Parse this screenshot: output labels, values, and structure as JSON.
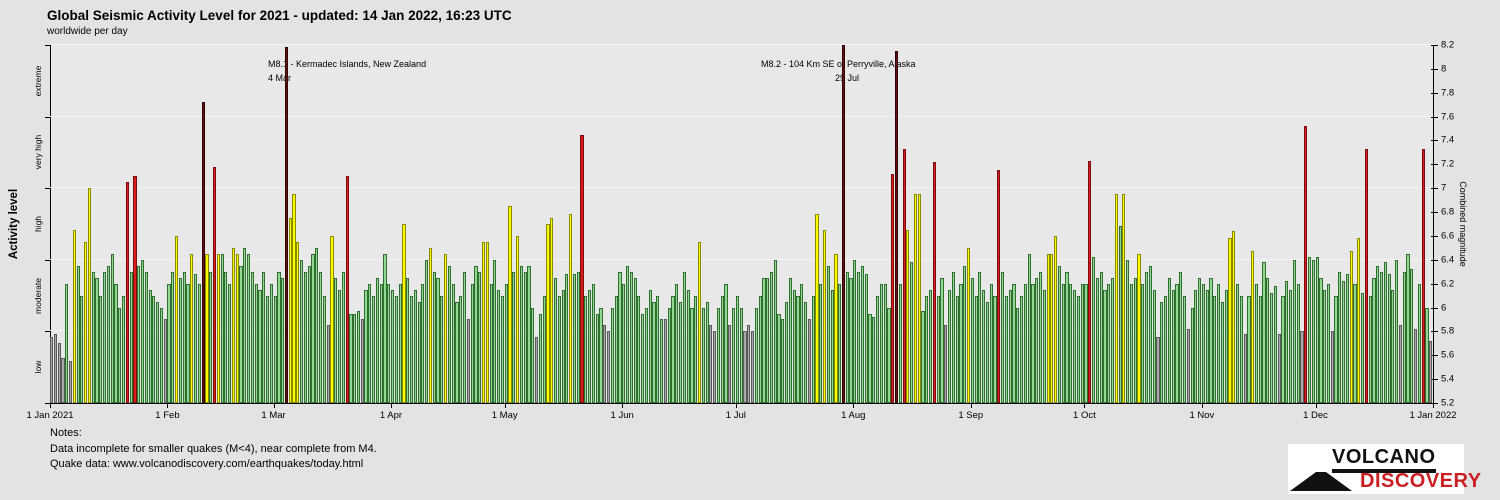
{
  "header": {
    "title": "Global Seismic Activity Level for 2021 - updated: 14 Jan 2022, 16:23 UTC",
    "subtitle": "worldwide per day"
  },
  "chart_data": {
    "type": "bar",
    "title": "Global Seismic Activity Level for 2021",
    "subtitle": "worldwide per day",
    "start_date": "2021-01-01",
    "ylabel_left": "Activity level",
    "ylabel_right": "Combined magnitude",
    "y_axis_left_categories": [
      "low",
      "moderate",
      "high",
      "very high",
      "extreme"
    ],
    "y_axis_right": {
      "min": 5.2,
      "max": 8.2,
      "tick_step": 0.2
    },
    "grid": true,
    "legend": "none",
    "x_tick_labels": [
      "1 Jan 2021",
      "1 Feb",
      "1 Mar",
      "1 Apr",
      "1 May",
      "1 Jun",
      "1 Jul",
      "1 Aug",
      "1 Sep",
      "1 Oct",
      "1 Nov",
      "1 Dec",
      "1 Jan 2022"
    ],
    "x_tick_day_offsets": [
      0,
      31,
      59,
      90,
      120,
      151,
      181,
      212,
      243,
      273,
      304,
      334,
      365
    ],
    "level_names": {
      "l": "low",
      "m": "moderate",
      "h": "high",
      "v": "very high",
      "e": "extreme"
    },
    "level_colors": {
      "l": "#a9a9a9",
      "m": "#92d892",
      "h": "#fbfb00",
      "v": "#da1c1c",
      "e": "#651010"
    },
    "level_border_colors": {
      "l": "#5a5a5a",
      "m": "#2e6e2e",
      "h": "#8a8a00",
      "v": "#7e0c0c",
      "e": "#2e0404"
    },
    "levels_by_month": [
      "llllmlhmmhhmmmmmmmmmvmvmmmmmmml",
      "mmhmmmhmmehmvhmmmhhmmmmmmmmm",
      "mmmehhhmmmmmmmlhmmmvmmmlmmmmmmm",
      "mmmhmmmmmmhmmmhmmmmmlmmmhhmmmm",
      "mhmhmmmmlmmhhmmmmhmmvmmmmmllmmm",
      "mmmmmmmmmmmlmmmmmmmmhmmllmmmlm",
      "mmlllmmmmmmmmmmmmmmlmhmhmmhmemm",
      "mmmmmmmmmmvemvhmhhmmmvmmlmmmmmh",
      "mmmmmmmvmmmmmmmmmmmmhhhmmmmmmm",
      "mvmmmmmmhmhmmmhmmmmlmmmmmmmlmmm",
      "mmmmmmmhhmmlmhmmmmmmlmmmmmlvmm",
      "mmmmlmmmmhmhmvmmmmmmmmlmmmlmvml"
    ],
    "values_by_month": [
      [
        5.75,
        5.78,
        5.7,
        5.58,
        6.2,
        5.55,
        6.65,
        6.35,
        6.1,
        6.55,
        7.0,
        6.3,
        6.25,
        6.1,
        6.3,
        6.35,
        6.45,
        6.2,
        6.0,
        6.1,
        7.05,
        6.3,
        7.1,
        6.35,
        6.4,
        6.3,
        6.15,
        6.1,
        6.05,
        6.0,
        5.9
      ],
      [
        6.2,
        6.3,
        6.6,
        6.25,
        6.3,
        6.2,
        6.45,
        6.28,
        6.2,
        7.72,
        6.45,
        6.3,
        7.18,
        6.45,
        6.45,
        6.3,
        6.2,
        6.5,
        6.45,
        6.35,
        6.5,
        6.45,
        6.3,
        6.2,
        6.15,
        6.3,
        6.1,
        6.2
      ],
      [
        6.1,
        6.3,
        6.25,
        8.18,
        6.75,
        6.95,
        6.55,
        6.4,
        6.3,
        6.35,
        6.45,
        6.5,
        6.3,
        6.1,
        5.85,
        6.6,
        6.25,
        6.15,
        6.3,
        7.1,
        5.95,
        5.95,
        5.97,
        5.9,
        6.15,
        6.2,
        6.1,
        6.25,
        6.2,
        6.45,
        6.2
      ],
      [
        6.15,
        6.1,
        6.2,
        6.7,
        6.25,
        6.1,
        6.15,
        6.05,
        6.2,
        6.4,
        6.5,
        6.3,
        6.25,
        6.1,
        6.45,
        6.35,
        6.2,
        6.05,
        6.1,
        6.3,
        5.9,
        6.2,
        6.35,
        6.3,
        6.55,
        6.55,
        6.2,
        6.4,
        6.15,
        6.1
      ],
      [
        6.2,
        6.85,
        6.3,
        6.6,
        6.35,
        6.3,
        6.35,
        6.0,
        5.75,
        5.95,
        6.1,
        6.7,
        6.75,
        6.25,
        6.1,
        6.15,
        6.28,
        6.78,
        6.28,
        6.3,
        7.45,
        6.1,
        6.15,
        6.2,
        5.95,
        6.0,
        5.85,
        5.8,
        6.0,
        6.1,
        6.3
      ],
      [
        6.2,
        6.35,
        6.3,
        6.25,
        6.1,
        5.95,
        6.0,
        6.15,
        6.05,
        6.1,
        5.9,
        5.9,
        6.0,
        6.1,
        6.2,
        6.05,
        6.3,
        6.15,
        6.0,
        6.1,
        6.55,
        6.0,
        6.05,
        5.85,
        5.8,
        6.0,
        6.1,
        6.2,
        5.85,
        6.0
      ],
      [
        6.1,
        6.0,
        5.8,
        5.85,
        5.8,
        6.0,
        6.1,
        6.25,
        6.25,
        6.3,
        6.4,
        5.95,
        5.9,
        6.05,
        6.25,
        6.15,
        6.1,
        6.2,
        6.05,
        5.9,
        6.1,
        6.78,
        6.2,
        6.65,
        6.35,
        6.15,
        6.45,
        6.2,
        8.2,
        6.3,
        6.25
      ],
      [
        6.4,
        6.3,
        6.35,
        6.28,
        5.95,
        5.92,
        6.1,
        6.2,
        6.2,
        6.0,
        7.12,
        8.15,
        6.2,
        7.33,
        6.65,
        6.38,
        6.95,
        6.95,
        5.97,
        6.1,
        6.15,
        7.22,
        6.1,
        6.25,
        5.85,
        6.15,
        6.3,
        6.1,
        6.2,
        6.35,
        6.5
      ],
      [
        6.25,
        6.1,
        6.3,
        6.15,
        6.05,
        6.2,
        6.1,
        7.15,
        6.3,
        6.1,
        6.15,
        6.2,
        6.0,
        6.1,
        6.2,
        6.45,
        6.2,
        6.25,
        6.3,
        6.15,
        6.45,
        6.45,
        6.6,
        6.35,
        6.2,
        6.3,
        6.2,
        6.15,
        6.1,
        6.2
      ],
      [
        6.2,
        7.23,
        6.42,
        6.25,
        6.3,
        6.15,
        6.2,
        6.25,
        6.95,
        6.68,
        6.95,
        6.4,
        6.2,
        6.25,
        6.45,
        6.2,
        6.3,
        6.35,
        6.15,
        5.75,
        6.05,
        6.1,
        6.25,
        6.15,
        6.2,
        6.3,
        6.1,
        5.82,
        6.0,
        6.15,
        6.25
      ],
      [
        6.2,
        6.15,
        6.25,
        6.1,
        6.2,
        6.05,
        6.15,
        6.58,
        6.64,
        6.2,
        6.1,
        5.78,
        6.1,
        6.47,
        6.2,
        6.1,
        6.38,
        6.25,
        6.12,
        6.18,
        5.78,
        6.1,
        6.22,
        6.15,
        6.4,
        6.2,
        5.8,
        7.52,
        6.42,
        6.4
      ],
      [
        6.42,
        6.25,
        6.15,
        6.2,
        5.8,
        6.1,
        6.3,
        6.22,
        6.28,
        6.47,
        6.2,
        6.58,
        6.12,
        7.33,
        6.1,
        6.25,
        6.35,
        6.3,
        6.38,
        6.28,
        6.15,
        6.4,
        5.85,
        6.3,
        6.45,
        6.32,
        5.82,
        6.2,
        7.33,
        6.0,
        5.72
      ]
    ],
    "annotations": [
      {
        "line1": "M8.1 - Kermadec Islands, New Zealand",
        "line2": "4 Mar",
        "day_of_year": 63
      },
      {
        "line1": "M8.2 - 104 Km SE of Perryville, Alaska",
        "line2": "29 Jul",
        "day_of_year": 210
      }
    ]
  },
  "notes": {
    "heading": "Notes:",
    "line1": "Data incomplete for smaller quakes (M<4), near complete from M4.",
    "line2": "Quake data: www.volcanodiscovery.com/earthquakes/today.html"
  },
  "logo": {
    "line1": "VOLCANO",
    "line2": "DISCOVERY"
  },
  "colors": {
    "page_background": "#e3e3e3",
    "plot_background": "#e8e8e8",
    "gridline": "#f4f4f4",
    "axis": "#000000",
    "logo_red": "#cb1f24"
  }
}
